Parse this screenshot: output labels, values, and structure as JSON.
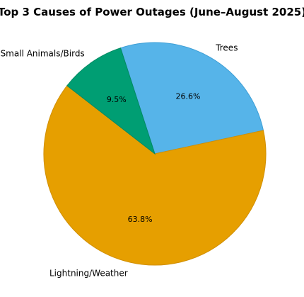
{
  "chart_data": {
    "type": "pie",
    "title": "Top 3 Causes of Power Outages (June–August 2025)",
    "slices": [
      {
        "label": "Trees",
        "value": 26.6,
        "pct_label": "26.6%",
        "color": "#56B4E9",
        "edge": "#3E9FD6"
      },
      {
        "label": "Lightning/Weather",
        "value": 63.8,
        "pct_label": "63.8%",
        "color": "#E69F00",
        "edge": "#D18F00"
      },
      {
        "label": "Small Animals/Birds",
        "value": 9.5,
        "pct_label": "9.5%",
        "color": "#009E73",
        "edge": "#008A63"
      }
    ],
    "start_angle_deg": 108,
    "direction": "clockwise",
    "legend": "none"
  }
}
